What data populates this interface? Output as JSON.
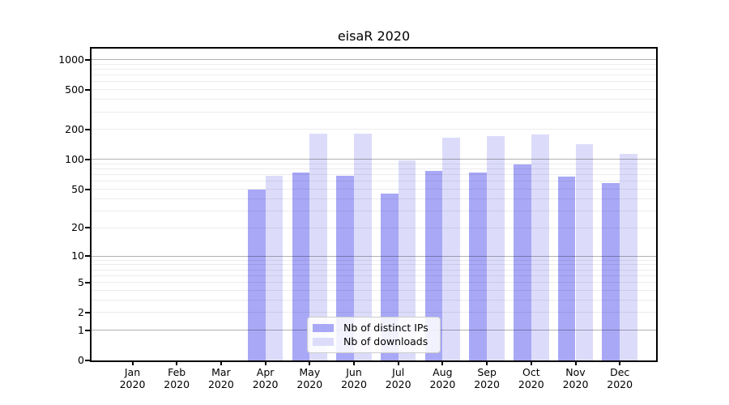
{
  "chart_data": {
    "type": "bar",
    "title": "eisaR 2020",
    "categories": [
      "Jan 2020",
      "Feb 2020",
      "Mar 2020",
      "Apr 2020",
      "May 2020",
      "Jun 2020",
      "Jul 2020",
      "Aug 2020",
      "Sep 2020",
      "Oct 2020",
      "Nov 2020",
      "Dec 2020"
    ],
    "series": [
      {
        "name": "Nb of distinct IPs",
        "color": "#a8a8f6",
        "values": [
          0,
          0,
          0,
          50,
          74,
          69,
          45,
          76,
          74,
          89,
          67,
          58
        ]
      },
      {
        "name": "Nb of downloads",
        "color": "#dcdcfa",
        "values": [
          0,
          0,
          0,
          68,
          181,
          181,
          98,
          166,
          172,
          177,
          142,
          114
        ]
      }
    ],
    "y_axis": {
      "scale": "log10(1+value)",
      "tick_values": [
        0,
        1,
        2,
        5,
        10,
        20,
        50,
        100,
        200,
        500,
        1000
      ],
      "ylim": [
        0,
        1286
      ]
    },
    "x_label": "",
    "y_label": "",
    "grid": "major and minor horizontal gridlines, drawn over bars",
    "legend_position": "lower center"
  }
}
